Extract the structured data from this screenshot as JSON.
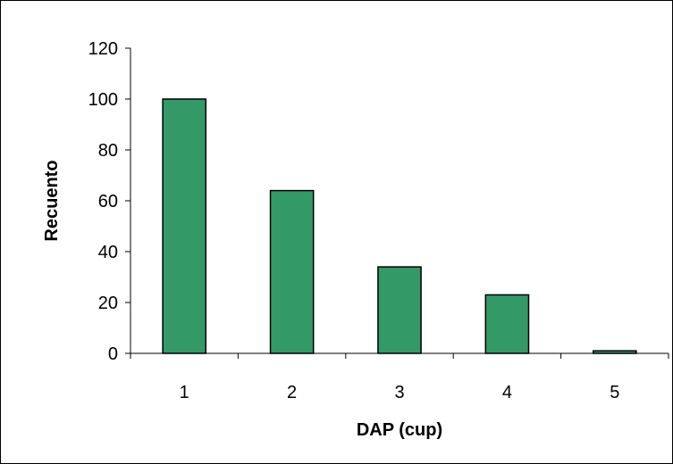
{
  "chart_data": {
    "type": "bar",
    "categories": [
      "1",
      "2",
      "3",
      "4",
      "5"
    ],
    "values": [
      100,
      64,
      34,
      23,
      1
    ],
    "xlabel": "DAP (cup)",
    "ylabel": "Recuento",
    "ylim": [
      0,
      120
    ],
    "yticks": [
      "0",
      "20",
      "40",
      "60",
      "80",
      "100",
      "120"
    ],
    "grid": false,
    "legend": "none",
    "bar_color": "#339966",
    "bar_border_color": "#000000"
  }
}
